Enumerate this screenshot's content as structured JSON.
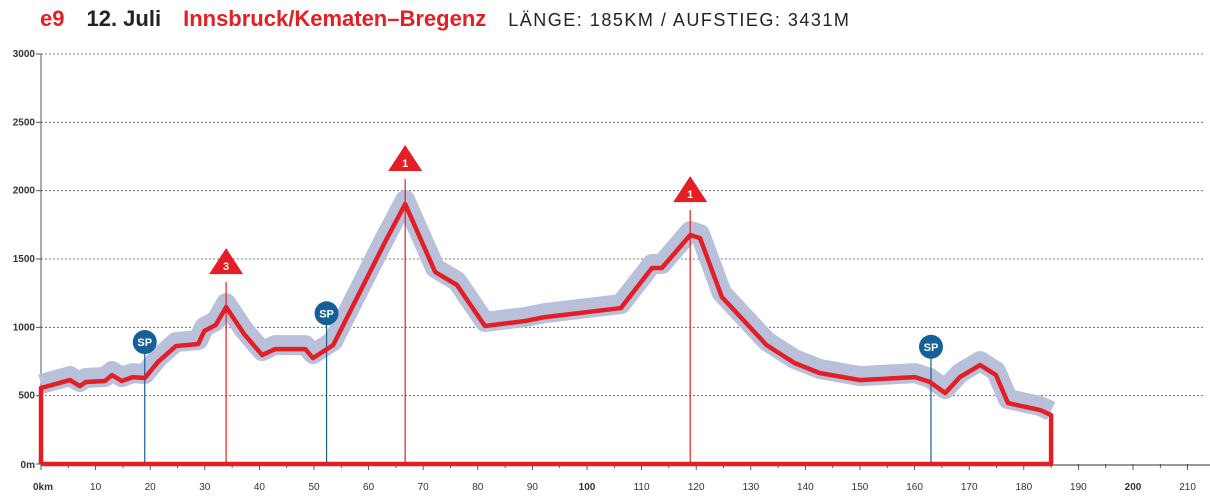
{
  "header": {
    "stage": "e9",
    "date": "12. Juli",
    "route": "Innsbruck/Kematen–Bregenz",
    "stats": "LÄNGE: 185KM / AUFSTIEG: 3431M"
  },
  "chart_data": {
    "type": "line",
    "title": "Innsbruck/Kematen–Bregenz",
    "xlabel": "km",
    "ylabel": "m",
    "xlim": [
      0,
      215
    ],
    "ylim": [
      0,
      3000
    ],
    "x_ticks": [
      {
        "v": 0,
        "label": "0km",
        "bold": true
      },
      {
        "v": 10,
        "label": "10"
      },
      {
        "v": 20,
        "label": "20"
      },
      {
        "v": 30,
        "label": "30"
      },
      {
        "v": 40,
        "label": "40"
      },
      {
        "v": 50,
        "label": "50"
      },
      {
        "v": 60,
        "label": "60"
      },
      {
        "v": 70,
        "label": "70"
      },
      {
        "v": 80,
        "label": "80"
      },
      {
        "v": 90,
        "label": "90"
      },
      {
        "v": 100,
        "label": "100",
        "bold": true
      },
      {
        "v": 110,
        "label": "110"
      },
      {
        "v": 120,
        "label": "120"
      },
      {
        "v": 130,
        "label": "130"
      },
      {
        "v": 140,
        "label": "140"
      },
      {
        "v": 150,
        "label": "150"
      },
      {
        "v": 160,
        "label": "160"
      },
      {
        "v": 170,
        "label": "170"
      },
      {
        "v": 180,
        "label": "180"
      },
      {
        "v": 190,
        "label": "190"
      },
      {
        "v": 200,
        "label": "200",
        "bold": true
      },
      {
        "v": 210,
        "label": "210"
      }
    ],
    "y_ticks": [
      {
        "v": 0,
        "label": "0m"
      },
      {
        "v": 500,
        "label": "500"
      },
      {
        "v": 1000,
        "label": "1000"
      },
      {
        "v": 1500,
        "label": "1500"
      },
      {
        "v": 2000,
        "label": "2000"
      },
      {
        "v": 2500,
        "label": "2500"
      },
      {
        "v": 3000,
        "label": "3000"
      }
    ],
    "grid": true,
    "distance_total_km": 185,
    "profile": [
      [
        0,
        556
      ],
      [
        5.3,
        614
      ],
      [
        7.1,
        570
      ],
      [
        8.2,
        600
      ],
      [
        11.7,
        607
      ],
      [
        13,
        651
      ],
      [
        14.8,
        607
      ],
      [
        16.8,
        636
      ],
      [
        19,
        629
      ],
      [
        21.4,
        746
      ],
      [
        24.7,
        863
      ],
      [
        28.8,
        878
      ],
      [
        29.9,
        973
      ],
      [
        32,
        1017
      ],
      [
        33.9,
        1148
      ],
      [
        37.2,
        951
      ],
      [
        40.5,
        797
      ],
      [
        42.9,
        841
      ],
      [
        48.4,
        841
      ],
      [
        49.8,
        775
      ],
      [
        53.5,
        870
      ],
      [
        63.2,
        1639
      ],
      [
        66.7,
        1902
      ],
      [
        72.2,
        1404
      ],
      [
        76.2,
        1309
      ],
      [
        81.3,
        1010
      ],
      [
        88.6,
        1046
      ],
      [
        92.3,
        1075
      ],
      [
        106.2,
        1141
      ],
      [
        111.9,
        1434
      ],
      [
        113.7,
        1434
      ],
      [
        118.9,
        1675
      ],
      [
        120.7,
        1653
      ],
      [
        124.7,
        1222
      ],
      [
        132.9,
        870
      ],
      [
        138,
        739
      ],
      [
        142.6,
        666
      ],
      [
        150,
        614
      ],
      [
        160.1,
        636
      ],
      [
        162.8,
        600
      ],
      [
        165.6,
        519
      ],
      [
        168.3,
        636
      ],
      [
        172,
        724
      ],
      [
        174.9,
        651
      ],
      [
        177.1,
        446
      ],
      [
        183,
        395
      ],
      [
        185,
        358
      ]
    ],
    "markers": [
      {
        "type": "sprint",
        "label": "SP",
        "km": 19
      },
      {
        "type": "climb",
        "label": "3",
        "km": 33.9
      },
      {
        "type": "sprint",
        "label": "SP",
        "km": 52.3
      },
      {
        "type": "climb",
        "label": "1",
        "km": 66.7
      },
      {
        "type": "climb",
        "label": "1",
        "km": 118.9
      },
      {
        "type": "sprint",
        "label": "SP",
        "km": 163
      }
    ],
    "colors": {
      "profile": "#e31e24",
      "band": "#b8c0da",
      "sprint": "#16609a",
      "grid": "#555555"
    }
  }
}
